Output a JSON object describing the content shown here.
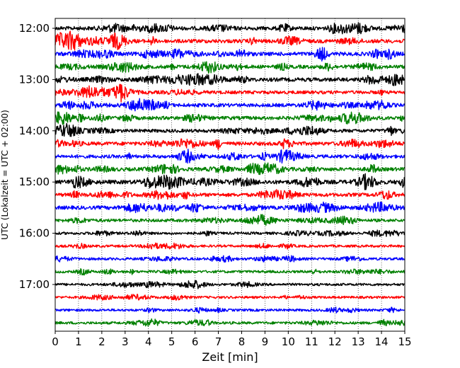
{
  "chart_data": {
    "type": "line",
    "subtype": "helicorder",
    "xlabel": "Zeit  [min]",
    "ylabel": "UTC (Lokalzeit = UTC + 02:00)",
    "xlim": [
      0,
      15
    ],
    "x_ticks": [
      0,
      1,
      2,
      3,
      4,
      5,
      6,
      7,
      8,
      9,
      10,
      11,
      12,
      13,
      14,
      15
    ],
    "x_tick_labels": [
      "0",
      "1",
      "2",
      "3",
      "4",
      "5",
      "6",
      "7",
      "8",
      "9",
      "10",
      "11",
      "12",
      "13",
      "14",
      "15"
    ],
    "x_grid": "dotted vertical lines at each minute",
    "y_ticks": [
      "12:00",
      "13:00",
      "14:00",
      "15:00",
      "16:00",
      "17:00"
    ],
    "colors_cycle": [
      "#000000",
      "#ff0000",
      "#0000ff",
      "#008000"
    ],
    "trace_interval_minutes": 15,
    "traces": [
      {
        "start": "12:00",
        "color": "#000000",
        "activity": 0.9
      },
      {
        "start": "12:15",
        "color": "#ff0000",
        "activity": 0.9
      },
      {
        "start": "12:30",
        "color": "#0000ff",
        "activity": 0.9
      },
      {
        "start": "12:45",
        "color": "#008000",
        "activity": 0.8
      },
      {
        "start": "13:00",
        "color": "#000000",
        "activity": 0.9
      },
      {
        "start": "13:15",
        "color": "#ff0000",
        "activity": 0.7
      },
      {
        "start": "13:30",
        "color": "#0000ff",
        "activity": 0.8
      },
      {
        "start": "13:45",
        "color": "#008000",
        "activity": 0.8
      },
      {
        "start": "14:00",
        "color": "#000000",
        "activity": 0.7
      },
      {
        "start": "14:15",
        "color": "#ff0000",
        "activity": 0.8
      },
      {
        "start": "14:30",
        "color": "#0000ff",
        "activity": 0.7
      },
      {
        "start": "14:45",
        "color": "#008000",
        "activity": 0.8
      },
      {
        "start": "15:00",
        "color": "#000000",
        "activity": 1.0
      },
      {
        "start": "15:15",
        "color": "#ff0000",
        "activity": 0.8
      },
      {
        "start": "15:30",
        "color": "#0000ff",
        "activity": 0.8
      },
      {
        "start": "15:45",
        "color": "#008000",
        "activity": 0.6
      },
      {
        "start": "16:00",
        "color": "#000000",
        "activity": 0.35
      },
      {
        "start": "16:15",
        "color": "#ff0000",
        "activity": 0.3
      },
      {
        "start": "16:30",
        "color": "#0000ff",
        "activity": 0.35
      },
      {
        "start": "16:45",
        "color": "#008000",
        "activity": 0.35
      },
      {
        "start": "17:00",
        "color": "#000000",
        "activity": 0.3
      },
      {
        "start": "17:15",
        "color": "#ff0000",
        "activity": 0.25
      },
      {
        "start": "17:30",
        "color": "#0000ff",
        "activity": 0.3
      },
      {
        "start": "17:45",
        "color": "#008000",
        "activity": 0.35
      }
    ]
  }
}
